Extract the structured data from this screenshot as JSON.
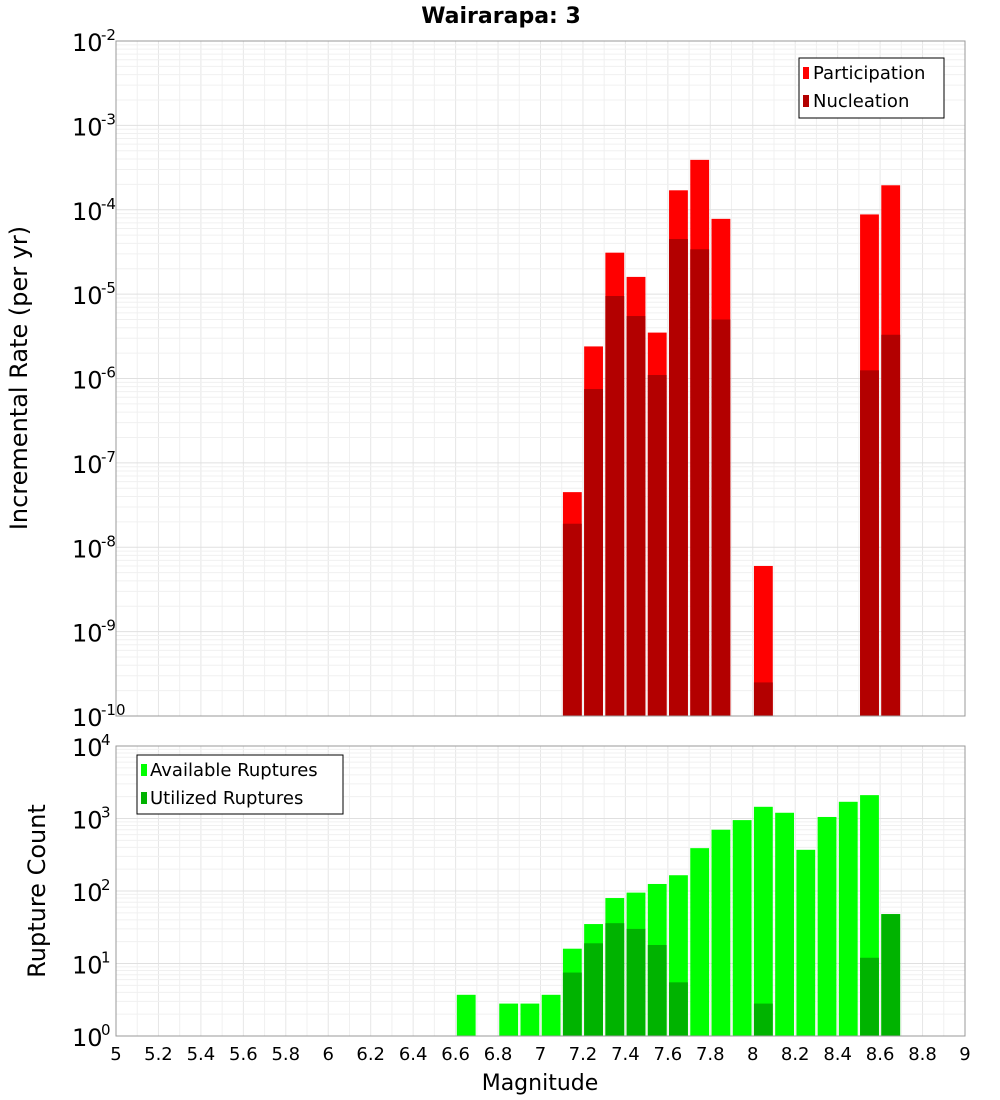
{
  "chart_data": [
    {
      "type": "bar",
      "title": "Wairarapa: 3",
      "ylabel": "Incremental Rate (per yr)",
      "xlabel": "",
      "yscale": "log",
      "ylim_exponents": [
        -10,
        -2
      ],
      "xlim": [
        5,
        9
      ],
      "bin_width": 0.1,
      "legend_position": "top-right",
      "series": [
        {
          "name": "Participation",
          "color": "#ff0000",
          "points": [
            [
              7.15,
              4.5e-08
            ],
            [
              7.25,
              2.4e-06
            ],
            [
              7.35,
              3.1e-05
            ],
            [
              7.45,
              1.6e-05
            ],
            [
              7.55,
              3.5e-06
            ],
            [
              7.65,
              0.00017
            ],
            [
              7.75,
              0.00039
            ],
            [
              7.85,
              7.8e-05
            ],
            [
              8.05,
              6e-09
            ],
            [
              8.55,
              8.8e-05
            ],
            [
              8.65,
              0.000195
            ]
          ]
        },
        {
          "name": "Nucleation",
          "color": "#b30000",
          "points": [
            [
              7.15,
              1.9e-08
            ],
            [
              7.25,
              7.5e-07
            ],
            [
              7.35,
              9.5e-06
            ],
            [
              7.45,
              5.5e-06
            ],
            [
              7.55,
              1.1e-06
            ],
            [
              7.65,
              4.5e-05
            ],
            [
              7.75,
              3.4e-05
            ],
            [
              7.85,
              5e-06
            ],
            [
              8.05,
              2.5e-10
            ],
            [
              8.55,
              1.25e-06
            ],
            [
              8.65,
              3.3e-06
            ]
          ]
        }
      ]
    },
    {
      "type": "bar",
      "title": "",
      "ylabel": "Rupture Count",
      "xlabel": "Magnitude",
      "yscale": "log",
      "ylim_exponents": [
        0,
        4
      ],
      "xlim": [
        5,
        9
      ],
      "bin_width": 0.1,
      "x_ticks": [
        "5",
        "5.2",
        "5.4",
        "5.6",
        "5.8",
        "6",
        "6.2",
        "6.4",
        "6.6",
        "6.8",
        "7",
        "7.2",
        "7.4",
        "7.6",
        "7.8",
        "8",
        "8.2",
        "8.4",
        "8.6",
        "8.8",
        "9"
      ],
      "legend_position": "top-left",
      "series": [
        {
          "name": "Available Ruptures",
          "color": "#00ff00",
          "points": [
            [
              6.65,
              3.7
            ],
            [
              6.85,
              2.8
            ],
            [
              6.95,
              2.8
            ],
            [
              7.05,
              3.7
            ],
            [
              7.15,
              16
            ],
            [
              7.25,
              35
            ],
            [
              7.35,
              80
            ],
            [
              7.45,
              95
            ],
            [
              7.55,
              125
            ],
            [
              7.65,
              165
            ],
            [
              7.75,
              390
            ],
            [
              7.85,
              700
            ],
            [
              7.95,
              950
            ],
            [
              8.05,
              1450
            ],
            [
              8.15,
              1200
            ],
            [
              8.25,
              370
            ],
            [
              8.35,
              1050
            ],
            [
              8.45,
              1700
            ],
            [
              8.55,
              2100
            ],
            [
              8.65,
              48
            ]
          ]
        },
        {
          "name": "Utilized Ruptures",
          "color": "#00b300",
          "points": [
            [
              7.15,
              7.5
            ],
            [
              7.25,
              19
            ],
            [
              7.35,
              36
            ],
            [
              7.45,
              30
            ],
            [
              7.55,
              18
            ],
            [
              7.65,
              5.5
            ],
            [
              7.75,
              1
            ],
            [
              7.85,
              1
            ],
            [
              7.95,
              1
            ],
            [
              8.05,
              2.8
            ],
            [
              8.15,
              1
            ],
            [
              8.35,
              1
            ],
            [
              8.45,
              1
            ],
            [
              8.55,
              12
            ],
            [
              8.65,
              48
            ]
          ]
        }
      ]
    }
  ]
}
